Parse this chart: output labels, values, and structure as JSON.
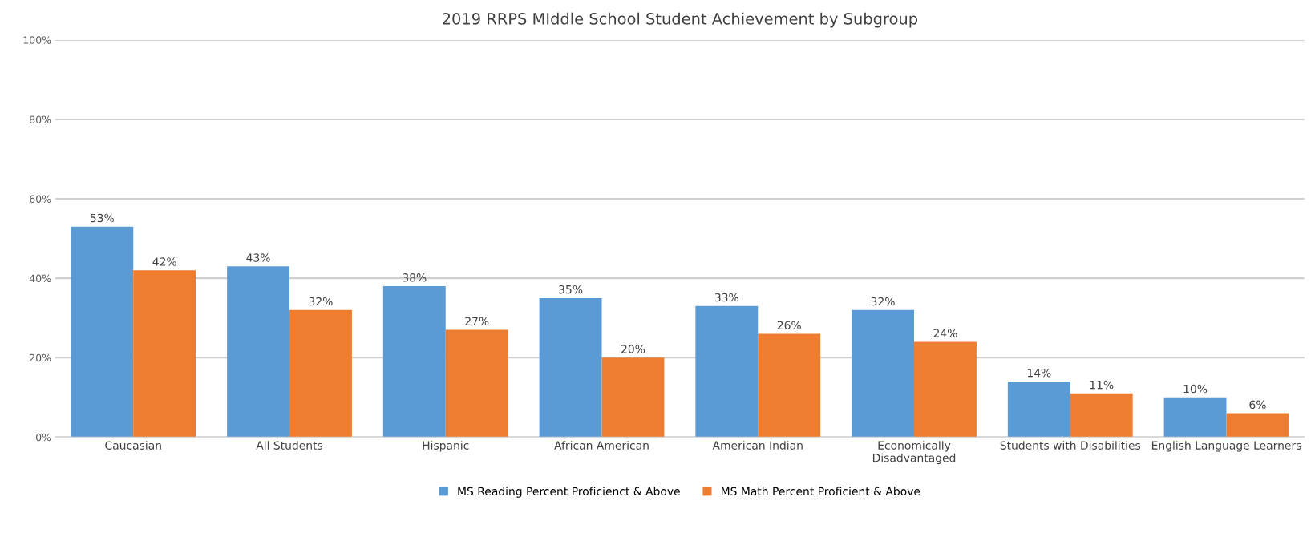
{
  "chart_data": {
    "type": "bar",
    "title": "2019 RRPS MIddle School Student Achievement by Subgroup",
    "categories": [
      "Caucasian",
      "All Students",
      "Hispanic",
      "African American",
      "American Indian",
      "Economically\nDisadvantaged",
      "Students with Disabilities",
      "English Language Learners"
    ],
    "series": [
      {
        "name": "MS Reading Percent Proficienct & Above",
        "color": "#5b9bd5",
        "values": [
          53,
          43,
          38,
          35,
          33,
          32,
          14,
          10
        ],
        "value_labels": [
          "53%",
          "43%",
          "38%",
          "35%",
          "33%",
          "32%",
          "14%",
          "10%"
        ]
      },
      {
        "name": "MS Math Percent Proficient & Above",
        "color": "#ed7d31",
        "values": [
          42,
          32,
          27,
          20,
          26,
          24,
          11,
          6
        ],
        "value_labels": [
          "42%",
          "32%",
          "27%",
          "20%",
          "26%",
          "24%",
          "11%",
          "6%"
        ]
      }
    ],
    "ylim": [
      0,
      100
    ],
    "yticks": [
      {
        "value": 0,
        "label": "0%"
      },
      {
        "value": 20,
        "label": "20%"
      },
      {
        "value": 40,
        "label": "40%"
      },
      {
        "value": 60,
        "label": "60%"
      },
      {
        "value": 80,
        "label": "80%"
      },
      {
        "value": 100,
        "label": "100%"
      }
    ],
    "grid": "y",
    "legend": "bottom"
  }
}
